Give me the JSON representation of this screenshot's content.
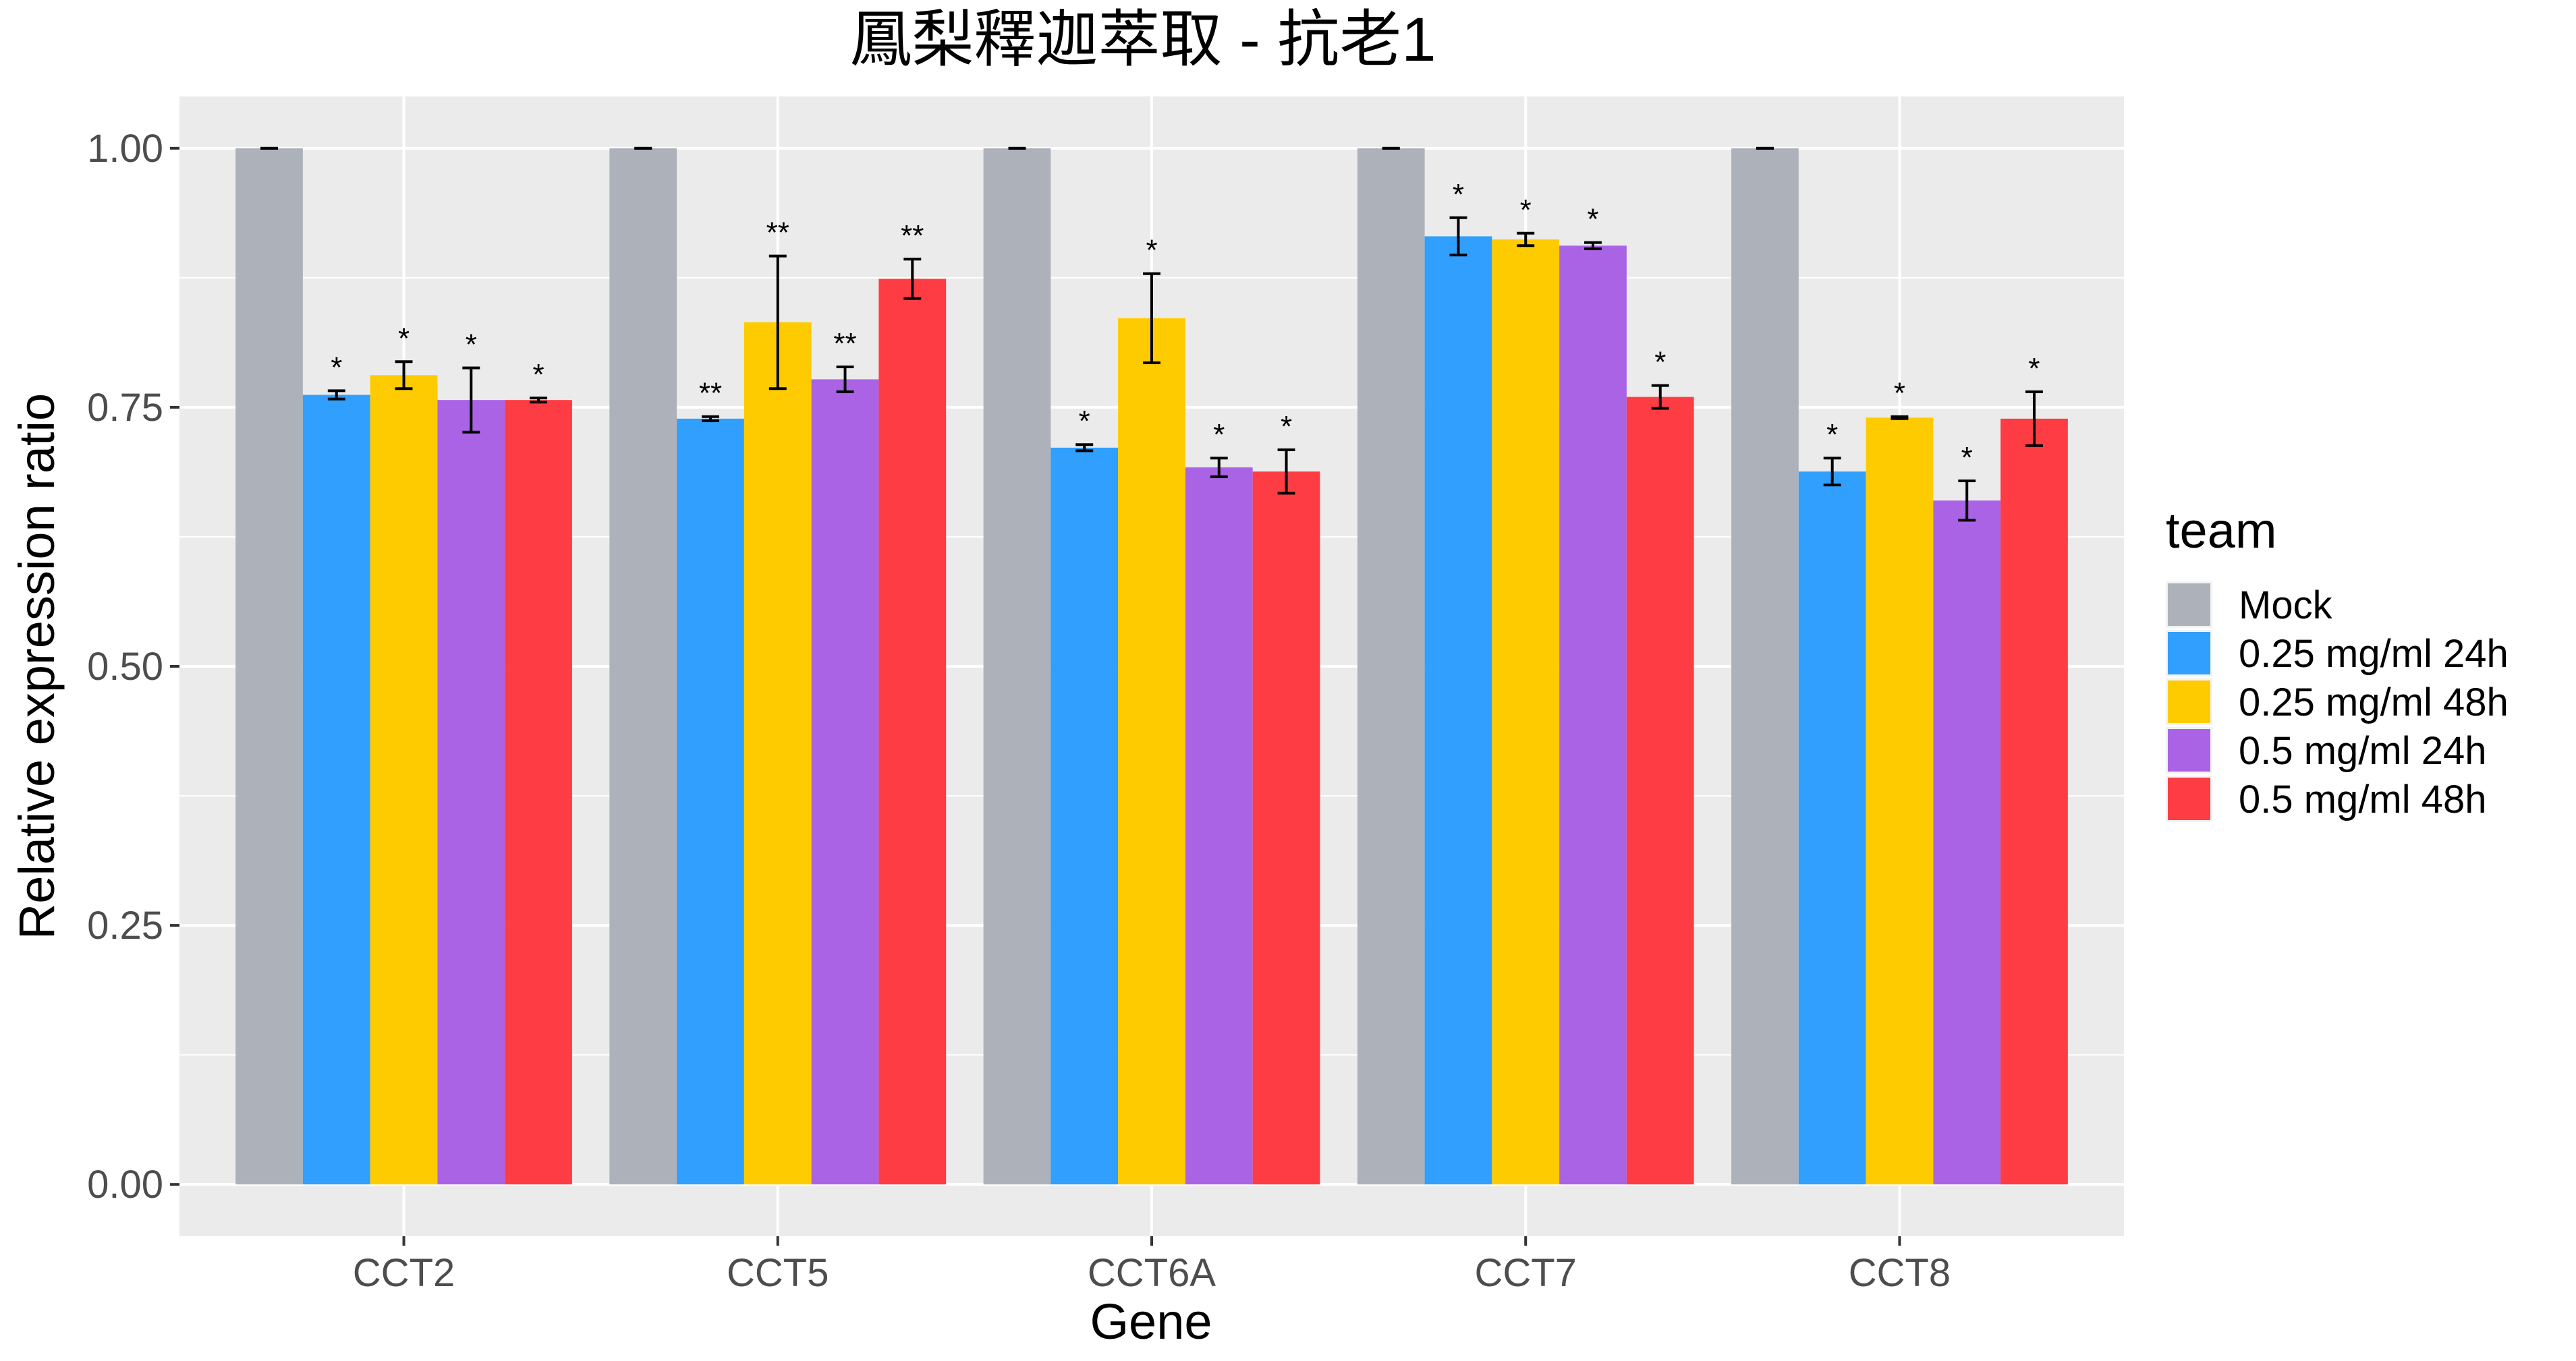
{
  "chart_data": {
    "type": "bar",
    "title": "鳳梨釋迦萃取 - 抗老1",
    "xlabel": "Gene",
    "ylabel": "Relative expression ratio",
    "ylim": [
      -0.05,
      1.05
    ],
    "yticks": [
      "0.00",
      "0.25",
      "0.50",
      "0.75",
      "1.00"
    ],
    "grid": true,
    "legend_position": "right",
    "legend_title": "team",
    "categories": [
      "CCT2",
      "CCT5",
      "CCT6A",
      "CCT7",
      "CCT8"
    ],
    "series": [
      {
        "name": "Mock",
        "color": "#adb2ba",
        "values": [
          1.0,
          1.0,
          1.0,
          1.0,
          1.0
        ],
        "errors": [
          0.0,
          0.0,
          0.0,
          0.0,
          0.0
        ],
        "sig": [
          "",
          "",
          "",
          "",
          ""
        ]
      },
      {
        "name": "0.25 mg/ml 24h",
        "color": "#319ffd",
        "values": [
          0.762,
          0.739,
          0.711,
          0.915,
          0.688
        ],
        "errors": [
          0.004,
          0.002,
          0.003,
          0.018,
          0.013
        ],
        "sig": [
          "*",
          "**",
          "*",
          "*",
          "*"
        ]
      },
      {
        "name": "0.25 mg/ml 48h",
        "color": "#fecb00",
        "values": [
          0.781,
          0.832,
          0.836,
          0.912,
          0.74
        ],
        "errors": [
          0.013,
          0.064,
          0.043,
          0.006,
          0.001
        ],
        "sig": [
          "*",
          "**",
          "*",
          "*",
          "*"
        ]
      },
      {
        "name": "0.5 mg/ml 24h",
        "color": "#ab63e5",
        "values": [
          0.757,
          0.777,
          0.692,
          0.906,
          0.66
        ],
        "errors": [
          0.031,
          0.012,
          0.009,
          0.003,
          0.019
        ],
        "sig": [
          "*",
          "**",
          "*",
          "*",
          "*"
        ]
      },
      {
        "name": "0.5 mg/ml 48h",
        "color": "#fe3c44",
        "values": [
          0.757,
          0.874,
          0.688,
          0.76,
          0.739
        ],
        "errors": [
          0.002,
          0.019,
          0.021,
          0.011,
          0.026
        ],
        "sig": [
          "*",
          "**",
          "*",
          "*",
          "*"
        ]
      }
    ]
  }
}
